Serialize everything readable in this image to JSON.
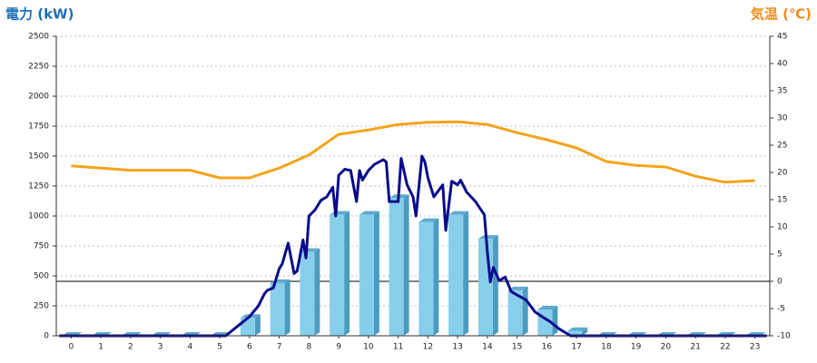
{
  "chart_data": {
    "type": "bar",
    "y_label": "電力 (kW)",
    "y2_label": "気温 (℃)",
    "categories": [
      "0",
      "1",
      "2",
      "3",
      "4",
      "5",
      "6",
      "7",
      "8",
      "9",
      "10",
      "11",
      "12",
      "13",
      "14",
      "15",
      "16",
      "17",
      "18",
      "19",
      "20",
      "21",
      "22",
      "23"
    ],
    "ylim": [
      0,
      2500
    ],
    "yticks": [
      0,
      250,
      500,
      750,
      1000,
      1250,
      1500,
      1750,
      2000,
      2250,
      2500
    ],
    "y2lim": [
      -10,
      45
    ],
    "y2ticks": [
      -10,
      -5,
      0,
      5,
      10,
      15,
      20,
      25,
      30,
      35,
      40,
      45
    ],
    "grid": true,
    "series": [
      {
        "type": "bar",
        "color": "#87ceeb",
        "values": [
          0,
          0,
          0,
          0,
          0,
          0,
          150,
          440,
          700,
          1010,
          1010,
          1150,
          950,
          1010,
          810,
          380,
          220,
          40,
          0,
          0,
          0,
          0,
          0,
          0
        ]
      },
      {
        "type": "line",
        "color": "#0a0a8c",
        "x": [
          -0.4,
          5.2,
          5.5,
          5.8,
          6.0,
          6.3,
          6.5,
          6.6,
          6.8,
          7.0,
          7.1,
          7.3,
          7.5,
          7.6,
          7.8,
          7.9,
          8.0,
          8.2,
          8.4,
          8.6,
          8.8,
          8.9,
          9.0,
          9.2,
          9.4,
          9.6,
          9.7,
          9.8,
          10.0,
          10.2,
          10.5,
          10.6,
          10.7,
          11.0,
          11.1,
          11.3,
          11.5,
          11.6,
          11.8,
          11.9,
          12.0,
          12.2,
          12.5,
          12.6,
          12.8,
          13.0,
          13.1,
          13.3,
          13.6,
          13.9,
          14.0,
          14.1,
          14.2,
          14.4,
          14.6,
          14.8,
          15.0,
          15.3,
          15.6,
          15.9,
          16.1,
          16.4,
          16.8,
          23.4
        ],
        "values": [
          0,
          0,
          60,
          120,
          160,
          250,
          350,
          380,
          400,
          560,
          600,
          773,
          520,
          540,
          800,
          650,
          1000,
          1050,
          1130,
          1160,
          1240,
          1000,
          1340,
          1390,
          1380,
          1120,
          1380,
          1300,
          1380,
          1430,
          1470,
          1450,
          1120,
          1120,
          1480,
          1260,
          1160,
          1000,
          1500,
          1450,
          1320,
          1160,
          1260,
          880,
          1290,
          1260,
          1300,
          1200,
          1120,
          1010,
          700,
          450,
          570,
          460,
          490,
          370,
          340,
          300,
          200,
          150,
          120,
          60,
          0,
          0
        ]
      },
      {
        "type": "line",
        "axis": "y2",
        "color": "#f5a31a",
        "values": [
          21.2,
          20.8,
          20.4,
          20.4,
          20.4,
          19.0,
          19.0,
          20.8,
          23.2,
          27.0,
          27.8,
          28.8,
          29.2,
          29.3,
          28.8,
          27.3,
          26.0,
          24.5,
          22.0,
          21.3,
          21.0,
          19.3,
          18.2,
          18.5
        ]
      }
    ]
  }
}
